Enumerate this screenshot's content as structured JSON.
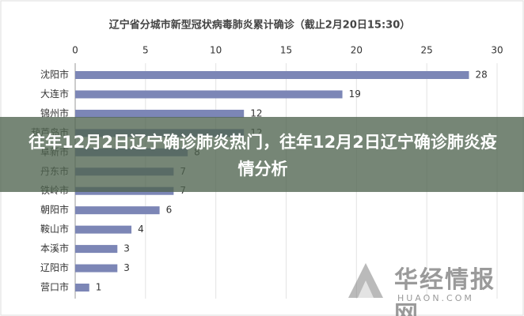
{
  "chart_data": {
    "type": "barh",
    "title": "辽宁省分城市新型冠状病毒肺炎累计确诊（截止2月20日15:30）",
    "categories": [
      "沈阳市",
      "大连市",
      "锦州市",
      "葫芦岛市",
      "阜新市",
      "丹东市",
      "铁岭市",
      "朝阳市",
      "鞍山市",
      "本溪市",
      "辽阳市",
      "营口市"
    ],
    "values": [
      28,
      19,
      12,
      12,
      8,
      7,
      7,
      6,
      4,
      3,
      3,
      1
    ],
    "color": "#7c86b6",
    "xlim": [
      0,
      30
    ],
    "xticks": [
      0,
      5,
      10,
      15,
      20,
      25,
      30
    ],
    "grid": true
  },
  "overlay": {
    "headline": "往年12月2日辽宁确诊肺炎热门，往年12月2日辽宁确诊肺炎疫情分析"
  },
  "watermark": {
    "name": "华经情报网",
    "url": "HUAON.COM"
  }
}
